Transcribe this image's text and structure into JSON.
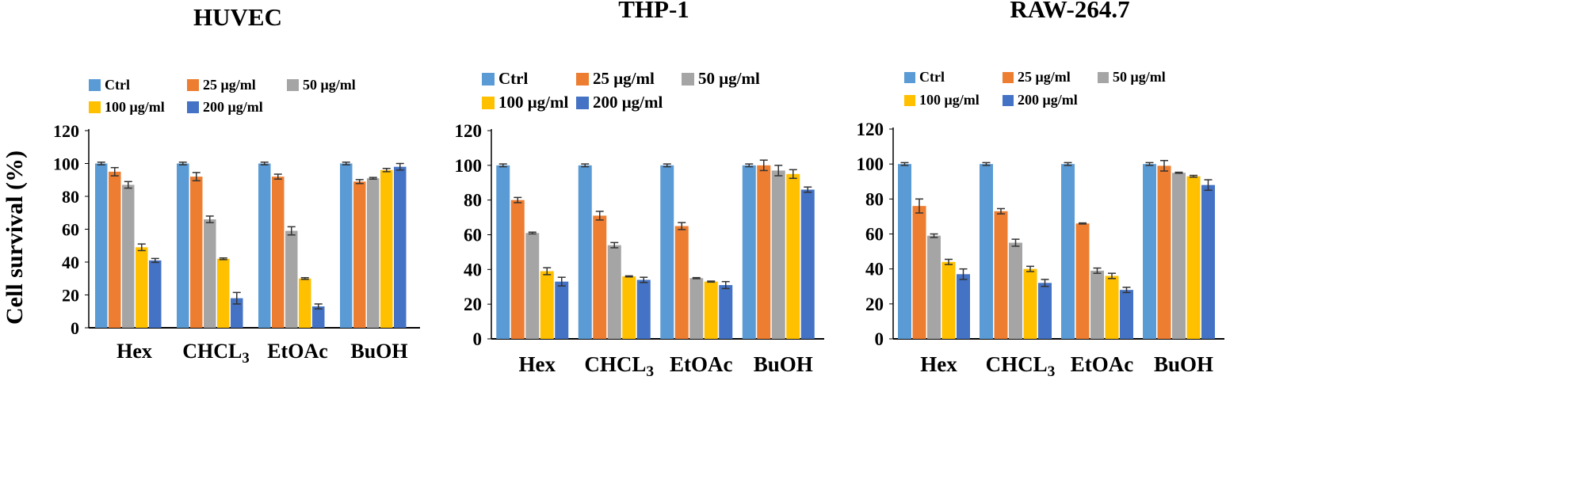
{
  "ylabel": "Cell survival (%)",
  "chart_data": [
    {
      "type": "bar",
      "title": "HUVEC",
      "categories": [
        "Hex",
        "CHCL3",
        "EtOAc",
        "BuOH"
      ],
      "category_labels": [
        {
          "main": "Hex",
          "sub": ""
        },
        {
          "main": "CHCL",
          "sub": "3"
        },
        {
          "main": "EtOAc",
          "sub": ""
        },
        {
          "main": "BuOH",
          "sub": ""
        }
      ],
      "ylabel": "Cell survival (%)",
      "ylim": [
        0,
        120
      ],
      "yticks": [
        0,
        20,
        40,
        60,
        80,
        100,
        120
      ],
      "legend_position": "top",
      "series": [
        {
          "name": "Ctrl",
          "color": "#5B9BD5",
          "values": [
            100,
            100,
            100,
            100
          ],
          "errors": [
            0.8,
            0.8,
            0.8,
            0.8
          ]
        },
        {
          "name": "25 μg/ml",
          "color": "#ED7D31",
          "values": [
            95,
            92,
            92,
            89
          ],
          "errors": [
            2.5,
            2.5,
            1.5,
            1.2
          ]
        },
        {
          "name": "50 μg/ml",
          "color": "#A5A5A5",
          "values": [
            87,
            66,
            59,
            91
          ],
          "errors": [
            2,
            2,
            2.5,
            0.5
          ]
        },
        {
          "name": "100 μg/ml",
          "color": "#FFC000",
          "values": [
            49,
            42,
            30,
            96
          ],
          "errors": [
            2,
            0.5,
            0.5,
            1
          ]
        },
        {
          "name": "200 μg/ml",
          "color": "#4472C4",
          "values": [
            41,
            18,
            13,
            98
          ],
          "errors": [
            1.2,
            3.5,
            1.5,
            2
          ]
        }
      ]
    },
    {
      "type": "bar",
      "title": "THP-1",
      "categories": [
        "Hex",
        "CHCL3",
        "EtOAc",
        "BuOH"
      ],
      "category_labels": [
        {
          "main": "Hex",
          "sub": ""
        },
        {
          "main": "CHCL",
          "sub": "3"
        },
        {
          "main": "EtOAc",
          "sub": ""
        },
        {
          "main": "BuOH",
          "sub": ""
        }
      ],
      "ylabel": "",
      "ylim": [
        0,
        120
      ],
      "yticks": [
        0,
        20,
        40,
        60,
        80,
        100,
        120
      ],
      "legend_position": "top",
      "series": [
        {
          "name": "Ctrl",
          "color": "#5B9BD5",
          "values": [
            100,
            100,
            100,
            100
          ],
          "errors": [
            0.8,
            0.8,
            0.8,
            0.8
          ]
        },
        {
          "name": "25 μg/ml",
          "color": "#ED7D31",
          "values": [
            80,
            71,
            65,
            100
          ],
          "errors": [
            1.5,
            2.5,
            2,
            3
          ]
        },
        {
          "name": "50 μg/ml",
          "color": "#A5A5A5",
          "values": [
            61,
            54,
            35,
            97
          ],
          "errors": [
            0.5,
            1.5,
            0.3,
            3
          ]
        },
        {
          "name": "100 μg/ml",
          "color": "#FFC000",
          "values": [
            39,
            36,
            33,
            95
          ],
          "errors": [
            2,
            0.3,
            0.3,
            2.5
          ]
        },
        {
          "name": "200 μg/ml",
          "color": "#4472C4",
          "values": [
            33,
            34,
            31,
            86
          ],
          "errors": [
            2.5,
            1.5,
            2,
            1.5
          ]
        }
      ]
    },
    {
      "type": "bar",
      "title": "RAW-264.7",
      "categories": [
        "Hex",
        "CHCL3",
        "EtOAc",
        "BuOH"
      ],
      "category_labels": [
        {
          "main": "Hex",
          "sub": ""
        },
        {
          "main": "CHCL",
          "sub": "3"
        },
        {
          "main": "EtOAc",
          "sub": ""
        },
        {
          "main": "BuOH",
          "sub": ""
        }
      ],
      "ylabel": "",
      "ylim": [
        0,
        120
      ],
      "yticks": [
        0,
        20,
        40,
        60,
        80,
        100,
        120
      ],
      "legend_position": "top",
      "series": [
        {
          "name": "Ctrl",
          "color": "#5B9BD5",
          "values": [
            100,
            100,
            100,
            100
          ],
          "errors": [
            0.8,
            0.8,
            0.8,
            0.8
          ]
        },
        {
          "name": "25 μg/ml",
          "color": "#ED7D31",
          "values": [
            76,
            73,
            66,
            99
          ],
          "errors": [
            4,
            1.5,
            0.3,
            3
          ]
        },
        {
          "name": "50 μg/ml",
          "color": "#A5A5A5",
          "values": [
            59,
            55,
            39,
            95
          ],
          "errors": [
            1,
            2,
            1.5,
            0.3
          ]
        },
        {
          "name": "100 μg/ml",
          "color": "#FFC000",
          "values": [
            44,
            40,
            36,
            93
          ],
          "errors": [
            1.5,
            1.5,
            1.5,
            0.5
          ]
        },
        {
          "name": "200 μg/ml",
          "color": "#4472C4",
          "values": [
            37,
            32,
            28,
            88
          ],
          "errors": [
            3,
            2,
            1.5,
            3
          ]
        }
      ]
    }
  ]
}
